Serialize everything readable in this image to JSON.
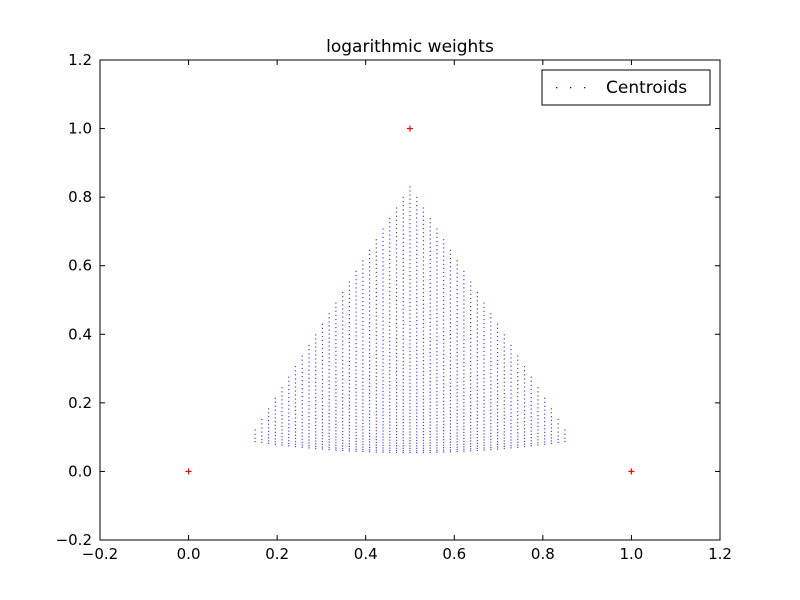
{
  "chart_data": {
    "type": "scatter",
    "title": "logarithmic weights",
    "xlabel": "",
    "ylabel": "",
    "xlim": [
      -0.2,
      1.2
    ],
    "ylim": [
      -0.2,
      1.2
    ],
    "xticks": [
      -0.2,
      0.0,
      0.2,
      0.4,
      0.6,
      0.8,
      1.0,
      1.2
    ],
    "yticks": [
      -0.2,
      0.0,
      0.2,
      0.4,
      0.6,
      0.8,
      1.0,
      1.2
    ],
    "xtick_labels": [
      "−0.2",
      "0.0",
      "0.2",
      "0.4",
      "0.6",
      "0.8",
      "1.0",
      "1.2"
    ],
    "ytick_labels": [
      "−0.2",
      "0.0",
      "0.2",
      "0.4",
      "0.6",
      "0.8",
      "1.0",
      "1.2"
    ],
    "grid": false,
    "legend": {
      "placement": "top-right",
      "entries": [
        "Centroids"
      ]
    },
    "series": [
      {
        "name": "Centroids",
        "marker": "dot",
        "color": "#0000ff",
        "region": {
          "shape": "triangle",
          "vertices": [
            [
              0.5,
              0.83
            ],
            [
              0.135,
              0.09
            ],
            [
              0.865,
              0.09
            ]
          ],
          "bottom_min_y": 0.055
        }
      },
      {
        "marker": "plus",
        "color": "#ff0000",
        "points": [
          [
            0.0,
            0.0
          ],
          [
            1.0,
            0.0
          ],
          [
            0.5,
            1.0
          ]
        ]
      }
    ]
  }
}
